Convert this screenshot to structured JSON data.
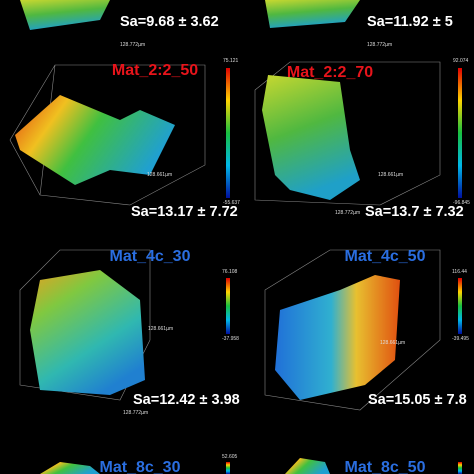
{
  "panels": [
    {
      "sa": "Sa=9.68 ± 3.62",
      "scale_x": "128.772µm"
    },
    {
      "sa": "Sa=11.92 ± 5",
      "scale_x": "128.772µm"
    },
    {
      "name": "Mat_2:2_50",
      "sa": "Sa=13.17 ± 7.72",
      "scale_y": "128.661µm",
      "scale_x": "128.772µm",
      "bar_max": "75.121",
      "bar_min": "-55.637"
    },
    {
      "name": "Mat_2:2_70",
      "sa": "Sa=13.7 ± 7.32",
      "scale_y": "128.661µm",
      "scale_x": "128.772µm",
      "bar_max": "92.074",
      "bar_min": "-96.845"
    },
    {
      "name": "Mat_4c_30",
      "sa": "Sa=12.42 ± 3.98",
      "scale_y": "128.661µm",
      "scale_x": "128.772µm",
      "bar_max": "76.108",
      "bar_min": "-37.958"
    },
    {
      "name": "Mat_4c_50",
      "sa": "Sa=15.05 ± 7.8",
      "scale_y": "128.661µm",
      "bar_max": "116.44",
      "bar_min": "-39.495"
    },
    {
      "name": "Mat_8c_30",
      "bar_max": "52.605"
    },
    {
      "name": "Mat_8c_50"
    }
  ]
}
